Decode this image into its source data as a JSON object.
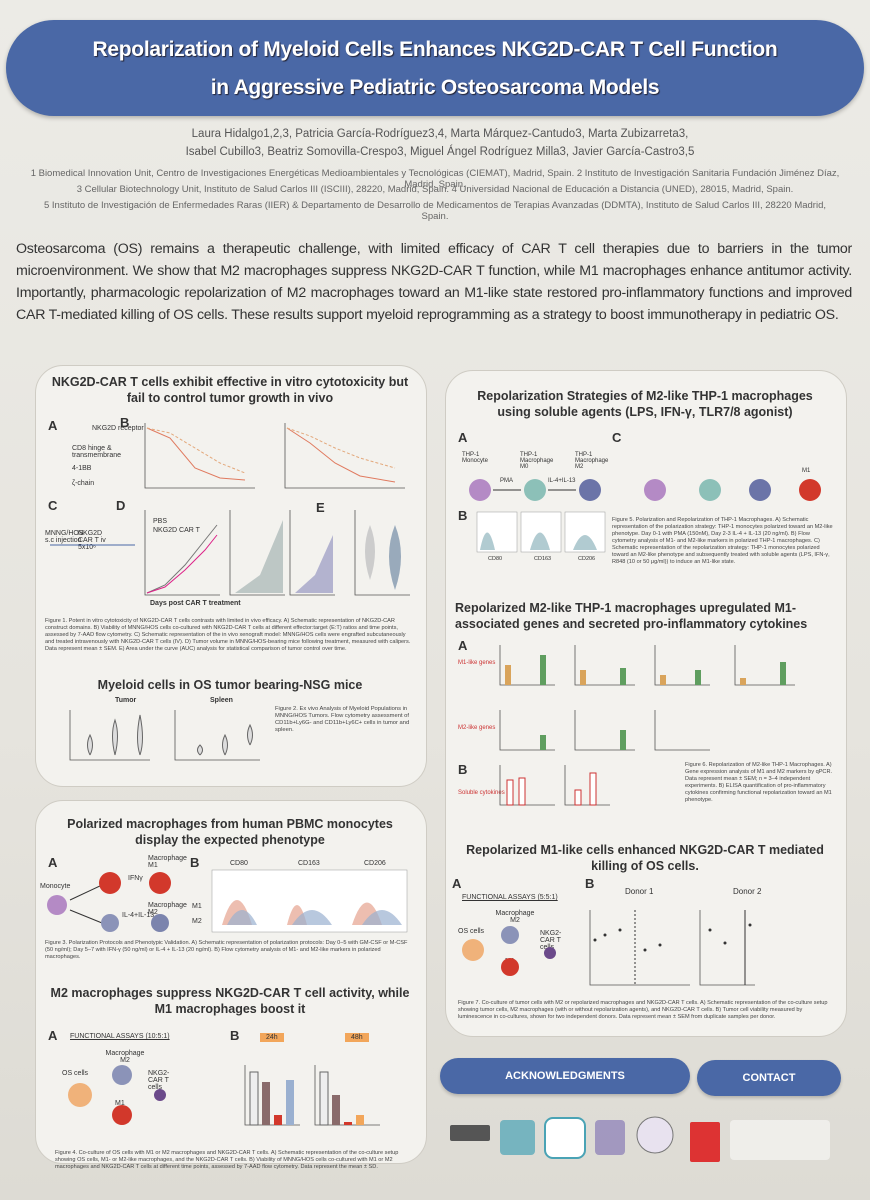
{
  "header": {
    "title_lines": [
      "Repolarization of Myeloid Cells Enhances NKG2D-CAR T Cell Function",
      "in Aggressive Pediatric Osteosarcoma Models"
    ],
    "authors": [
      "Laura Hidalgo1,2,3, Patricia García-Rodríguez3,4, Marta Márquez-Cantudo3, Marta Zubizarreta3,",
      "Isabel Cubillo3, Beatriz Somovilla-Crespo3, Miguel Ángel Rodríguez Milla3, Javier García-Castro3,5"
    ],
    "affiliations": [
      "1 Biomedical Innovation Unit, Centro de Investigaciones Energéticas Medioambientales y Tecnológicas (CIEMAT), Madrid, Spain. 2 Instituto de Investigación Sanitaria Fundación Jiménez Díaz, Madrid, Spain.",
      "3 Cellular Biotechnology Unit, Instituto de Salud Carlos III (ISCIII), 28220, Madrid, Spain. 4 Universidad Nacional de Educación a Distancia (UNED), 28015, Madrid, Spain.",
      "5 Instituto de Investigación de Enfermedades Raras (IIER) & Departamento de Desarrollo de Medicamentos de Terapias Avanzadas (DDMTA), Instituto de Salud Carlos III, 28220 Madrid, Spain."
    ]
  },
  "abstract": "Osteosarcoma (OS) remains a therapeutic challenge, with limited efficacy of CAR T cell therapies due to barriers in the tumor microenvironment. We show that M2 macrophages suppress NKG2D-CAR T function, while M1 macrophages enhance antitumor activity. Importantly, pharmacologic repolarization of M2 macrophages toward an M1-like state restored pro-inflammatory functions and improved CAR T-mediated killing of OS cells. These results support myeloid reprogramming as a strategy to boost immunotherapy in pediatric OS.",
  "sections": [
    {
      "title": "NKG2D-CAR T cells exhibit effective in vitro cytotoxicity but fail to control tumor growth in vivo",
      "panels": [
        "A",
        "B",
        "C",
        "D",
        "E"
      ],
      "labels": [
        "NKG2D receptor",
        "CD8 hinge & transmembrane",
        "4-1BB",
        "ζ-chain",
        "MNNG/HOS s.c injection",
        "NKG2D CAR T iv 5x10⁶",
        "PBS",
        "NKG2D CAR T",
        "Days post CAR T treatment"
      ],
      "caption": "Figure 1. Potent in vitro cytotoxicity of NKG2D-CAR T cells contrasts with limited in vivo efficacy. A) Schematic representation of NKG2D-CAR construct domains. B) Viability of MNNG/HOS cells co-cultured with NKG2D-CAR T cells at different effector:target (E:T) ratios and time points, assessed by 7-AAD flow cytometry. C) Schematic representation of the in vivo xenograft model: MNNG/HOS cells were engrafted subcutaneously and treated intravenously with NKG2D-CAR T cells (IV). D) Tumor volume in MNNG/HOS-bearing mice following treatment, measured with calipers. Data represent mean ± SEM. E) Area under the curve (AUC) analysis for statistical comparison of tumor control over time."
    },
    {
      "title": "Myeloid cells in OS tumor bearing-NSG mice",
      "panels": [],
      "labels": [
        "Tumor",
        "Spleen"
      ],
      "caption": "Figure 2. Ex vivo Analysis of Myeloid Populations in MNNG/HOS Tumors. Flow cytometry assessment of CD11b+Ly6G- and CD11b+Ly6C+ cells in tumor and spleen."
    },
    {
      "title": "Polarized macrophages from human PBMC monocytes display the expected phenotype",
      "panels": [
        "A",
        "B"
      ],
      "labels": [
        "Monocyte",
        "Macrophage M1",
        "Macrophage M2",
        "IFNγ",
        "IL-4+IL-13",
        "CD80",
        "CD163",
        "CD206",
        "M1",
        "M2"
      ],
      "caption": "Figure 3. Polarization Protocols and Phenotypic Validation. A) Schematic representation of polarization protocols: Day 0–5 with GM-CSF or M-CSF (50 ng/ml); Day 5–7 with IFN-γ (50 ng/ml) or IL-4 + IL-13 (20 ng/ml). B) Flow cytometry analysis of M1- and M2-like markers in polarized macrophages."
    },
    {
      "title": "M2 macrophages suppress NKG2D-CAR T cell activity, while M1 macrophages boost it",
      "panels": [
        "A",
        "B"
      ],
      "labels": [
        "FUNCTIONAL ASSAYS (10:5:1)",
        "Macrophage M2",
        "OS cells",
        "NKG2-CAR T cells",
        "M1",
        "24h",
        "48h"
      ],
      "caption": "Figure 4. Co-culture of OS cells with M1 or M2 macrophages and NKG2D-CAR T cells. A) Schematic representation of the co-culture setup showing OS cells, M1- or M2-like macrophages, and the NKG2D-CAR T cells. B) Viability of MNNG/HOS cells co-cultured with M1 or M2 macrophages and NKG2D-CAR T cells at different time points, assessed by 7-AAD flow cytometry. Data represent the mean ± SD."
    },
    {
      "title": "Repolarization Strategies of M2-like THP-1 macrophages using soluble agents (LPS, IFN-γ, TLR7/8 agonist)",
      "panels": [
        "A",
        "B",
        "C"
      ],
      "labels": [
        "THP-1 Monocyte",
        "THP-1 Macrophage M0",
        "THP-1 Macrophage M2",
        "PMA",
        "IL-4+IL-13",
        "M1",
        "CD80",
        "CD163",
        "CD206"
      ],
      "caption": "Figure 5. Polarization and Repolarization of THP-1 Macrophages. A) Schematic representation of the polarization strategy: THP-1 monocytes polarized toward an M2-like phenotype. Day 0-1 with PMA (150nM), Day 2-3 IL-4 + IL-13 (20 ng/ml). B) Flow cytometry analysis of M1- and M2-like markers in polarized THP-1 macrophages. C) Schematic representation of the repolarization strategy: THP-1 monocytes polarized toward an M2-like phenotype and subsequently treated with soluble agents (LPS, IFN-γ, R848 (10 or 50 μg/ml)) to induce an M1-like state."
    },
    {
      "title": "Repolarized M2-like THP-1 macrophages upregulated M1-associated genes and secreted pro-inflammatory cytokines",
      "panels": [
        "A",
        "B"
      ],
      "labels": [
        "M1-like genes",
        "M2-like genes",
        "Soluble cytokines"
      ],
      "caption": "Figure 6. Repolarization of M2-like THP-1 Macrophages. A) Gene expression analysis of M1 and M2 markers by qPCR. Data represent mean ± SEM; n = 3–4 independent experiments. B) ELISA quantification of pro-inflammatory cytokines confirming functional repolarization toward an M1 phenotype."
    },
    {
      "title": "Repolarized M1-like cells enhanced NKG2D-CAR T mediated killing of OS cells.",
      "panels": [
        "A",
        "B"
      ],
      "labels": [
        "FUNCTIONAL ASSAYS (5:5:1)",
        "Macrophage M2",
        "OS cells",
        "NKG2-CAR T cells",
        "M1",
        "Donor 1",
        "Donor 2"
      ],
      "caption": "Figure 7. Co-culture of tumor cells with M2 or repolarized macrophages and NKG2D-CAR T cells. A) Schematic representation of the co-culture setup showing tumor cells, M2 macrophages (with or without repolarization agents), and NKG2D-CAR T cells. B) Tumor cell viability measured by luminescence in co-cultures, shown for two independent donors. Data represent mean ± SEM from duplicate samples per donor."
    }
  ],
  "buttons": [
    "ACKNOWLEDGMENTS",
    "CONTACT"
  ]
}
